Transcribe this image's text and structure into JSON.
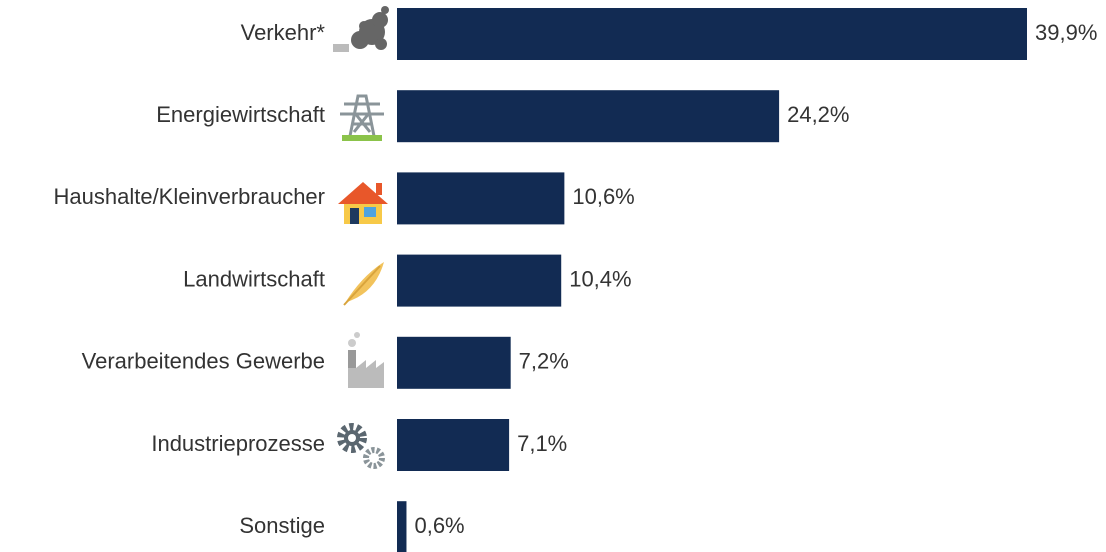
{
  "chart_data": {
    "type": "bar",
    "orientation": "horizontal",
    "categories": [
      "Verkehr*",
      "Energiewirtschaft",
      "Haushalte/Kleinverbraucher",
      "Landwirtschaft",
      "Verarbeitendes Gewerbe",
      "Industrieprozesse",
      "Sonstige"
    ],
    "values": [
      39.9,
      24.2,
      10.6,
      10.4,
      7.2,
      7.1,
      0.6
    ],
    "value_labels": [
      "39,9%",
      "24,2%",
      "10,6%",
      "10,4%",
      "7,2%",
      "7,1%",
      "0,6%"
    ],
    "color": "#122b53"
  }
}
